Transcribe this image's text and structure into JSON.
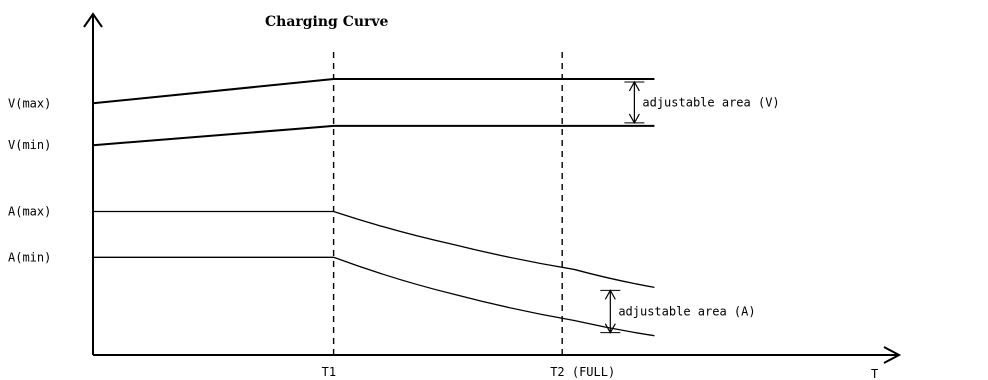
{
  "chart_data": {
    "type": "line",
    "title": "Charging Curve",
    "xlabel": "T",
    "ylabel": "",
    "xlim": [
      0,
      9.8
    ],
    "ylim": [
      0,
      10
    ],
    "x_ticks": [
      {
        "label": "T1",
        "x": 3
      },
      {
        "label": "T2 (FULL)",
        "x": 5.85
      }
    ],
    "y_ticks": [
      {
        "label": "V(max)",
        "y": 9.12
      },
      {
        "label": "V(min)",
        "y": 7.6
      },
      {
        "label": "A(max)",
        "y": 5.2
      },
      {
        "label": "A(min)",
        "y": 3.54
      }
    ],
    "vlines": [
      3,
      5.85
    ],
    "series": [
      {
        "values": [
          [
            0,
            9.12
          ],
          [
            3,
            10.0
          ],
          [
            7.0,
            10.0
          ]
        ]
      },
      {
        "values": [
          [
            0,
            7.6
          ],
          [
            3,
            8.3
          ],
          [
            7.0,
            8.3
          ]
        ]
      },
      {
        "values": [
          [
            0,
            5.2
          ],
          [
            3,
            5.2
          ],
          [
            4.5,
            4.0
          ],
          [
            6.0,
            3.1
          ],
          [
            7.0,
            2.45
          ]
        ]
      },
      {
        "values": [
          [
            0,
            3.54
          ],
          [
            3,
            3.54
          ],
          [
            4.5,
            2.2
          ],
          [
            6.0,
            1.25
          ],
          [
            7.0,
            0.7
          ]
        ]
      }
    ],
    "annotations": [
      {
        "text": "adjustable area (V)",
        "x": 6.75,
        "y_from": 8.3,
        "y_to": 10.0
      },
      {
        "text": "adjustable area (A)",
        "x": 6.45,
        "y_from": 0.7,
        "y_to": 2.45
      }
    ]
  }
}
